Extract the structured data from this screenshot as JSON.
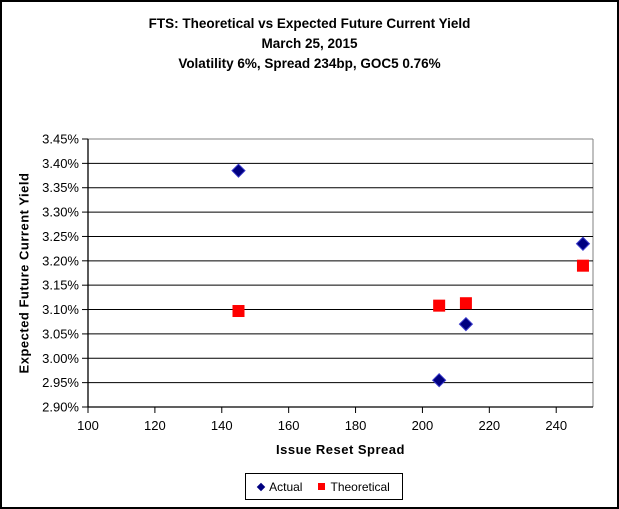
{
  "window": {
    "background_color": "#FFFFFF",
    "border_color": "#000000"
  },
  "chart_data": {
    "type": "scatter",
    "title": "FTS: Theoretical vs Expected Future Current Yield",
    "subtitle": "March 25, 2015",
    "subtitle2": "Volatility 6%, Spread 234bp, GOC5 0.76%",
    "x_axis": {
      "label": "Issue Reset Spread",
      "min": 100,
      "max": 251,
      "tick_start": 100,
      "tick_step": 20,
      "tick_labels": [
        "100",
        "120",
        "140",
        "160",
        "180",
        "200",
        "220",
        "240"
      ]
    },
    "y_axis": {
      "label": "Expected Future Current Yield",
      "min": 2.9,
      "max": 3.45,
      "tick_step": 0.05,
      "tick_labels_top_to_bottom": [
        "3.45%",
        "3.40%",
        "3.35%",
        "3.30%",
        "3.25%",
        "3.20%",
        "3.15%",
        "3.10%",
        "3.05%",
        "3.00%",
        "2.95%",
        "2.90%"
      ]
    },
    "series": [
      {
        "name": "Actual",
        "marker": "diamond",
        "color": "#000080",
        "points": [
          [
            145,
            3.385
          ],
          [
            205,
            2.955
          ],
          [
            213,
            3.07
          ],
          [
            248,
            3.235
          ]
        ]
      },
      {
        "name": "Theoretical",
        "marker": "square",
        "color": "#FF0000",
        "points": [
          [
            145,
            3.097
          ],
          [
            205,
            3.108
          ],
          [
            213,
            3.113
          ],
          [
            248,
            3.19
          ]
        ]
      }
    ],
    "grid": "horizontal-only",
    "gridline_color": "#000000",
    "plot_border_color": "#808080",
    "legend_position": "bottom-center"
  }
}
